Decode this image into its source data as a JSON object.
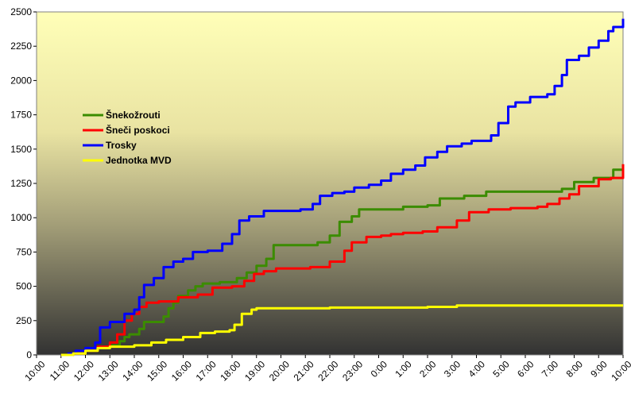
{
  "chart_data": {
    "type": "line",
    "title": "",
    "xlabel": "",
    "ylabel": "",
    "ylim": [
      0,
      2500
    ],
    "yticks": [
      0,
      250,
      500,
      750,
      1000,
      1250,
      1500,
      1750,
      2000,
      2250,
      2500
    ],
    "xticks": [
      "10:00",
      "11:00",
      "12:00",
      "13:00",
      "14:00",
      "15:00",
      "16:00",
      "17:00",
      "18:00",
      "19:00",
      "20:00",
      "21:00",
      "22:00",
      "23:00",
      "0:00",
      "1:00",
      "2:00",
      "3:00",
      "4:00",
      "5:00",
      "6:00",
      "7:00",
      "8:00",
      "9:00",
      "10:00"
    ],
    "legend": "left-upper",
    "grid": false,
    "series": [
      {
        "name": "Šnekožrouti",
        "color": "#3b8c00",
        "points": [
          [
            1.0,
            0
          ],
          [
            1.5,
            10
          ],
          [
            2.0,
            30
          ],
          [
            2.5,
            50
          ],
          [
            3.0,
            70
          ],
          [
            3.4,
            100
          ],
          [
            3.6,
            130
          ],
          [
            3.8,
            150
          ],
          [
            4.2,
            190
          ],
          [
            4.4,
            240
          ],
          [
            4.8,
            240
          ],
          [
            5.2,
            280
          ],
          [
            5.4,
            340
          ],
          [
            5.6,
            380
          ],
          [
            5.8,
            430
          ],
          [
            6.2,
            470
          ],
          [
            6.5,
            500
          ],
          [
            6.8,
            520
          ],
          [
            7.5,
            530
          ],
          [
            8.2,
            560
          ],
          [
            8.6,
            600
          ],
          [
            9.0,
            650
          ],
          [
            9.4,
            700
          ],
          [
            9.7,
            800
          ],
          [
            10.3,
            800
          ],
          [
            11.0,
            800
          ],
          [
            11.5,
            820
          ],
          [
            12.0,
            870
          ],
          [
            12.4,
            970
          ],
          [
            12.9,
            1010
          ],
          [
            13.2,
            1060
          ],
          [
            14.0,
            1060
          ],
          [
            15.0,
            1080
          ],
          [
            16.0,
            1090
          ],
          [
            16.5,
            1140
          ],
          [
            17.5,
            1160
          ],
          [
            18.4,
            1190
          ],
          [
            19.5,
            1190
          ],
          [
            20.5,
            1190
          ],
          [
            21.5,
            1210
          ],
          [
            22.0,
            1260
          ],
          [
            22.8,
            1290
          ],
          [
            23.6,
            1350
          ],
          [
            24.0,
            1380
          ]
        ]
      },
      {
        "name": "Šneči poskoci",
        "color": "#ff0000",
        "points": [
          [
            1.0,
            0
          ],
          [
            1.5,
            10
          ],
          [
            2.0,
            30
          ],
          [
            2.5,
            60
          ],
          [
            3.0,
            90
          ],
          [
            3.3,
            150
          ],
          [
            3.6,
            250
          ],
          [
            3.9,
            300
          ],
          [
            4.2,
            350
          ],
          [
            4.5,
            380
          ],
          [
            5.0,
            390
          ],
          [
            5.8,
            420
          ],
          [
            6.6,
            440
          ],
          [
            7.2,
            490
          ],
          [
            8.0,
            500
          ],
          [
            8.5,
            540
          ],
          [
            8.9,
            590
          ],
          [
            9.3,
            610
          ],
          [
            9.8,
            630
          ],
          [
            10.5,
            630
          ],
          [
            11.2,
            640
          ],
          [
            12.0,
            680
          ],
          [
            12.6,
            760
          ],
          [
            12.9,
            820
          ],
          [
            13.5,
            860
          ],
          [
            14.1,
            870
          ],
          [
            14.5,
            880
          ],
          [
            15.0,
            890
          ],
          [
            15.8,
            900
          ],
          [
            16.4,
            930
          ],
          [
            17.2,
            980
          ],
          [
            17.7,
            1040
          ],
          [
            18.5,
            1060
          ],
          [
            19.4,
            1070
          ],
          [
            20.5,
            1080
          ],
          [
            20.9,
            1100
          ],
          [
            21.4,
            1140
          ],
          [
            21.8,
            1170
          ],
          [
            22.2,
            1230
          ],
          [
            23.0,
            1280
          ],
          [
            23.5,
            1290
          ],
          [
            24.0,
            1290
          ],
          [
            24.0,
            1390
          ]
        ]
      },
      {
        "name": "Trosky",
        "color": "#0000ff",
        "points": [
          [
            1.0,
            0
          ],
          [
            1.3,
            10
          ],
          [
            1.6,
            30
          ],
          [
            2.0,
            50
          ],
          [
            2.4,
            90
          ],
          [
            2.6,
            200
          ],
          [
            3.0,
            240
          ],
          [
            3.6,
            300
          ],
          [
            4.0,
            330
          ],
          [
            4.2,
            420
          ],
          [
            4.4,
            510
          ],
          [
            4.8,
            560
          ],
          [
            5.2,
            640
          ],
          [
            5.6,
            680
          ],
          [
            6.0,
            700
          ],
          [
            6.4,
            750
          ],
          [
            7.0,
            760
          ],
          [
            7.6,
            810
          ],
          [
            8.0,
            880
          ],
          [
            8.3,
            980
          ],
          [
            8.7,
            1010
          ],
          [
            9.3,
            1050
          ],
          [
            10.0,
            1050
          ],
          [
            10.8,
            1060
          ],
          [
            11.3,
            1100
          ],
          [
            11.6,
            1160
          ],
          [
            12.1,
            1180
          ],
          [
            12.6,
            1190
          ],
          [
            13.0,
            1220
          ],
          [
            13.6,
            1240
          ],
          [
            14.1,
            1270
          ],
          [
            14.5,
            1320
          ],
          [
            15.0,
            1350
          ],
          [
            15.5,
            1380
          ],
          [
            15.9,
            1440
          ],
          [
            16.4,
            1480
          ],
          [
            16.8,
            1520
          ],
          [
            17.4,
            1540
          ],
          [
            17.8,
            1560
          ],
          [
            18.6,
            1600
          ],
          [
            18.9,
            1690
          ],
          [
            19.3,
            1810
          ],
          [
            19.6,
            1840
          ],
          [
            20.2,
            1880
          ],
          [
            20.9,
            1900
          ],
          [
            21.2,
            1960
          ],
          [
            21.5,
            2040
          ],
          [
            21.7,
            2150
          ],
          [
            22.2,
            2180
          ],
          [
            22.6,
            2240
          ],
          [
            23.0,
            2290
          ],
          [
            23.4,
            2360
          ],
          [
            23.6,
            2390
          ],
          [
            24.0,
            2400
          ],
          [
            24.0,
            2450
          ]
        ]
      },
      {
        "name": "Jednotka MVD",
        "color": "#ffff00",
        "points": [
          [
            1.0,
            0
          ],
          [
            1.5,
            10
          ],
          [
            2.0,
            30
          ],
          [
            2.5,
            50
          ],
          [
            3.0,
            60
          ],
          [
            4.0,
            70
          ],
          [
            4.7,
            90
          ],
          [
            5.3,
            110
          ],
          [
            6.0,
            130
          ],
          [
            6.7,
            160
          ],
          [
            7.3,
            170
          ],
          [
            7.9,
            180
          ],
          [
            8.1,
            220
          ],
          [
            8.4,
            300
          ],
          [
            8.8,
            330
          ],
          [
            9.0,
            340
          ],
          [
            10.0,
            340
          ],
          [
            12.0,
            345
          ],
          [
            16.0,
            350
          ],
          [
            17.2,
            360
          ],
          [
            20.0,
            360
          ],
          [
            24.0,
            360
          ]
        ]
      }
    ]
  }
}
